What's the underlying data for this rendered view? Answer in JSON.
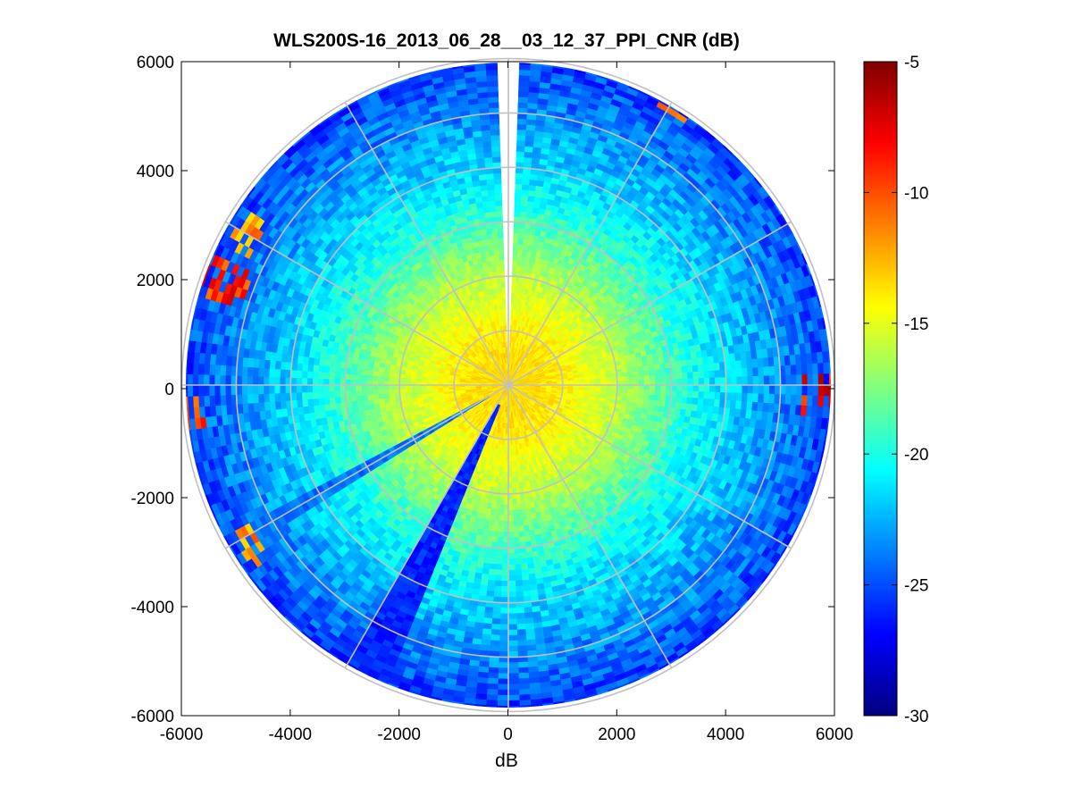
{
  "chart_data": {
    "type": "heatmap",
    "subtype": "polar-ppi",
    "title": "WLS200S-16_2013_06_28__03_12_37_PPI_CNR (dB)",
    "xlabel": "dB",
    "ylabel": "",
    "xlim": [
      -6000,
      6000
    ],
    "ylim": [
      -6000,
      6000
    ],
    "xticks": [
      -6000,
      -4000,
      -2000,
      0,
      2000,
      4000,
      6000
    ],
    "yticks": [
      6000,
      4000,
      2000,
      0,
      -2000,
      -4000,
      -6000
    ],
    "xtick_labels": [
      "-6000",
      "-4000",
      "-2000",
      "0",
      "2000",
      "4000",
      "6000"
    ],
    "ytick_labels": [
      "6000",
      "4000",
      "2000",
      "0",
      "-2000",
      "-4000",
      "-6000"
    ],
    "max_range": 6000,
    "range_rings": [
      1000,
      2000,
      3000,
      4000,
      5000,
      6000
    ],
    "spoke_angles_deg": [
      0,
      30,
      60,
      90,
      120,
      150,
      180,
      210,
      240,
      270,
      300,
      330
    ],
    "colorbar": {
      "min": -30,
      "max": -5,
      "ticks": [
        -5,
        -10,
        -15,
        -20,
        -25,
        -30
      ],
      "tick_labels": [
        "-5",
        "-10",
        "-15",
        "-20",
        "-25",
        "-30"
      ],
      "colormap": "jet"
    },
    "cnr_profile_by_range": [
      {
        "range": 500,
        "value": -13.5
      },
      {
        "range": 1000,
        "value": -14.0
      },
      {
        "range": 1500,
        "value": -15.0
      },
      {
        "range": 2000,
        "value": -16.0
      },
      {
        "range": 2500,
        "value": -17.5
      },
      {
        "range": 3000,
        "value": -19.0
      },
      {
        "range": 3500,
        "value": -20.5
      },
      {
        "range": 4000,
        "value": -21.5
      },
      {
        "range": 4500,
        "value": -22.5
      },
      {
        "range": 5000,
        "value": -23.5
      },
      {
        "range": 5500,
        "value": -24.5
      },
      {
        "range": 6000,
        "value": -25.5
      }
    ],
    "low_cnr_sectors": [
      {
        "azimuth_deg": 206,
        "width_deg": 7,
        "value": -26
      },
      {
        "azimuth_deg": 240,
        "width_deg": 3,
        "value": -24
      },
      {
        "azimuth_deg": 34,
        "width_deg": 2,
        "value": -21
      }
    ],
    "no_data_sectors": [
      {
        "azimuth_deg": 0,
        "width_deg": 3
      }
    ],
    "high_cnr_features": [
      {
        "azimuth_deg": 290,
        "range_min": 5100,
        "range_max": 6000,
        "value": -9
      },
      {
        "azimuth_deg": 300,
        "range_min": 5300,
        "range_max": 5800,
        "value": -12
      },
      {
        "azimuth_deg": 265,
        "range_min": 5600,
        "range_max": 6000,
        "value": -10
      },
      {
        "azimuth_deg": 92,
        "range_min": 5400,
        "range_max": 6000,
        "value": -8
      },
      {
        "azimuth_deg": 30,
        "range_min": 5800,
        "range_max": 6000,
        "value": -12
      },
      {
        "azimuth_deg": 238,
        "range_min": 5400,
        "range_max": 5800,
        "value": -12
      }
    ]
  }
}
